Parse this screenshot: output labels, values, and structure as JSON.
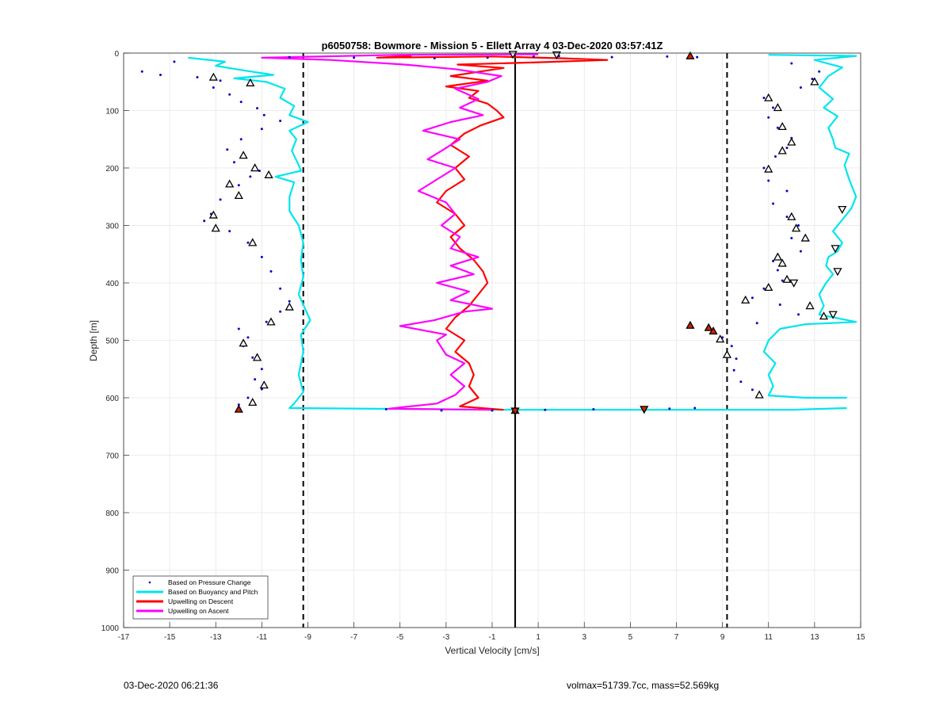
{
  "chart_data": {
    "type": "scatter",
    "title": "p6050758: Bowmore - Mission 5 - Ellett Array 4 03-Dec-2020 03:57:41Z",
    "xlabel": "Vertical Velocity [cm/s]",
    "ylabel": "Depth [m]",
    "xlim": [
      -17,
      15
    ],
    "ylim": [
      0,
      1000
    ],
    "y_reversed": true,
    "grid": true,
    "x_ticks": [
      -17,
      -15,
      -13,
      -11,
      -9,
      -7,
      -5,
      -3,
      -1,
      1,
      3,
      5,
      7,
      9,
      11,
      13,
      15
    ],
    "y_ticks": [
      0,
      100,
      200,
      300,
      400,
      500,
      600,
      700,
      800,
      900,
      1000
    ],
    "legend_position": "bottom-left",
    "reference_lines": [
      {
        "x": -9.2,
        "style": "dashed",
        "color": "#000000"
      },
      {
        "x": 0,
        "style": "solid",
        "color": "#000000"
      },
      {
        "x": 9.2,
        "style": "dashed",
        "color": "#000000"
      }
    ],
    "series": [
      {
        "name": "Based on Pressure Change",
        "kind": "points",
        "color": "#0000cc",
        "down": [
          [
            -14.8,
            15
          ],
          [
            -16.2,
            32
          ],
          [
            -15.4,
            38
          ],
          [
            -13.8,
            42
          ],
          [
            -12.8,
            48
          ],
          [
            -13.1,
            60
          ],
          [
            -12.4,
            72
          ],
          [
            -11.9,
            85
          ],
          [
            -11.2,
            96
          ],
          [
            -10.9,
            108
          ],
          [
            -10.2,
            118
          ],
          [
            -11.0,
            132
          ],
          [
            -11.9,
            150
          ],
          [
            -12.5,
            168
          ],
          [
            -11.8,
            178
          ],
          [
            -12.2,
            190
          ],
          [
            -11.1,
            205
          ],
          [
            -11.5,
            215
          ],
          [
            -12.0,
            230
          ],
          [
            -12.8,
            255
          ],
          [
            -13.2,
            280
          ],
          [
            -13.5,
            292
          ],
          [
            -12.4,
            310
          ],
          [
            -11.6,
            330
          ],
          [
            -11.0,
            355
          ],
          [
            -10.6,
            380
          ],
          [
            -10.2,
            410
          ],
          [
            -9.8,
            432
          ],
          [
            -10.2,
            450
          ],
          [
            -10.8,
            468
          ],
          [
            -12.0,
            480
          ],
          [
            -11.6,
            495
          ],
          [
            -11.8,
            510
          ],
          [
            -11.4,
            530
          ],
          [
            -11.0,
            550
          ],
          [
            -11.3,
            568
          ],
          [
            -11.0,
            585
          ],
          [
            -11.6,
            600
          ],
          [
            -12.0,
            612
          ]
        ],
        "up": [
          [
            10.6,
            598
          ],
          [
            10.3,
            586
          ],
          [
            9.8,
            572
          ],
          [
            9.5,
            552
          ],
          [
            9.6,
            532
          ],
          [
            9.4,
            510
          ],
          [
            9.0,
            495
          ],
          [
            8.6,
            480
          ],
          [
            10.5,
            470
          ],
          [
            12.3,
            455
          ],
          [
            11.5,
            438
          ],
          [
            10.3,
            426
          ],
          [
            10.8,
            410
          ],
          [
            11.6,
            396
          ],
          [
            11.4,
            378
          ],
          [
            11.2,
            362
          ],
          [
            12.4,
            345
          ],
          [
            12.0,
            322
          ],
          [
            12.3,
            300
          ],
          [
            11.8,
            285
          ],
          [
            11.2,
            262
          ],
          [
            11.8,
            240
          ],
          [
            11.0,
            222
          ],
          [
            10.8,
            200
          ],
          [
            11.3,
            180
          ],
          [
            11.8,
            165
          ],
          [
            12.0,
            148
          ],
          [
            11.4,
            130
          ],
          [
            11.0,
            112
          ],
          [
            11.2,
            95
          ],
          [
            10.8,
            78
          ],
          [
            12.4,
            60
          ],
          [
            12.9,
            45
          ],
          [
            13.2,
            32
          ],
          [
            12.0,
            18
          ]
        ],
        "spikes": [
          [
            -9.8,
            7
          ],
          [
            -7.0,
            8
          ],
          [
            -3.5,
            9
          ],
          [
            -1.2,
            8
          ],
          [
            0.8,
            6
          ],
          [
            1.9,
            5
          ],
          [
            4.2,
            7
          ],
          [
            6.6,
            6
          ],
          [
            7.9,
            7
          ],
          [
            -5.6,
            620
          ],
          [
            -3.2,
            622
          ],
          [
            -1.0,
            622
          ],
          [
            1.3,
            621
          ],
          [
            3.4,
            620
          ],
          [
            5.6,
            620
          ],
          [
            6.7,
            619
          ],
          [
            7.8,
            618
          ]
        ]
      },
      {
        "name": "Based on Buoyancy and Pitch",
        "kind": "line",
        "color": "#00e5ee",
        "down": [
          [
            -14.2,
            8
          ],
          [
            -12.6,
            15
          ],
          [
            -13.0,
            22
          ],
          [
            -11.8,
            30
          ],
          [
            -10.5,
            38
          ],
          [
            -12.2,
            44
          ],
          [
            -10.8,
            50
          ],
          [
            -10.0,
            62
          ],
          [
            -10.2,
            78
          ],
          [
            -9.6,
            92
          ],
          [
            -9.8,
            108
          ],
          [
            -9.0,
            120
          ],
          [
            -9.8,
            135
          ],
          [
            -9.5,
            150
          ],
          [
            -9.7,
            170
          ],
          [
            -9.4,
            195
          ],
          [
            -9.3,
            205
          ],
          [
            -10.4,
            215
          ],
          [
            -9.6,
            225
          ],
          [
            -9.8,
            250
          ],
          [
            -9.8,
            275
          ],
          [
            -9.4,
            300
          ],
          [
            -9.2,
            330
          ],
          [
            -9.3,
            360
          ],
          [
            -9.2,
            390
          ],
          [
            -9.4,
            420
          ],
          [
            -8.9,
            465
          ],
          [
            -9.3,
            490
          ],
          [
            -9.2,
            520
          ],
          [
            -9.4,
            560
          ],
          [
            -9.2,
            590
          ],
          [
            -9.6,
            610
          ],
          [
            -9.8,
            618
          ],
          [
            0,
            621
          ],
          [
            8,
            621
          ],
          [
            12,
            621
          ],
          [
            14.4,
            618
          ]
        ],
        "up": [
          [
            14.4,
            600
          ],
          [
            12.6,
            600
          ],
          [
            11.0,
            596
          ],
          [
            11.2,
            580
          ],
          [
            11.0,
            560
          ],
          [
            11.3,
            540
          ],
          [
            10.8,
            520
          ],
          [
            11.0,
            500
          ],
          [
            11.5,
            480
          ],
          [
            12.6,
            472
          ],
          [
            14.8,
            468
          ],
          [
            13.2,
            455
          ],
          [
            13.4,
            440
          ],
          [
            13.2,
            420
          ],
          [
            13.5,
            400
          ],
          [
            13.8,
            385
          ],
          [
            13.5,
            370
          ],
          [
            13.6,
            355
          ],
          [
            14.0,
            345
          ],
          [
            14.2,
            330
          ],
          [
            13.8,
            310
          ],
          [
            14.2,
            290
          ],
          [
            14.6,
            270
          ],
          [
            14.8,
            250
          ],
          [
            14.5,
            220
          ],
          [
            14.3,
            195
          ],
          [
            14.5,
            175
          ],
          [
            13.9,
            165
          ],
          [
            13.8,
            150
          ],
          [
            13.6,
            130
          ],
          [
            14.0,
            110
          ],
          [
            13.4,
            95
          ],
          [
            13.8,
            80
          ],
          [
            13.2,
            60
          ],
          [
            13.6,
            40
          ],
          [
            14.2,
            25
          ],
          [
            13.0,
            12
          ],
          [
            14.8,
            5
          ],
          [
            11.0,
            3
          ]
        ]
      },
      {
        "name": "Upwelling on Descent",
        "kind": "line",
        "color": "#ff0000",
        "points": [
          [
            -4.5,
            5
          ],
          [
            -6.0,
            8
          ],
          [
            -1.0,
            6
          ],
          [
            2.0,
            9
          ],
          [
            4.0,
            12
          ],
          [
            1.0,
            16
          ],
          [
            -2.5,
            20
          ],
          [
            -0.5,
            26
          ],
          [
            -1.5,
            32
          ],
          [
            -2.8,
            40
          ],
          [
            -1.2,
            48
          ],
          [
            -3.0,
            58
          ],
          [
            -1.6,
            66
          ],
          [
            -2.0,
            78
          ],
          [
            -1.2,
            88
          ],
          [
            -0.8,
            100
          ],
          [
            -0.5,
            112
          ],
          [
            -1.5,
            126
          ],
          [
            -2.2,
            140
          ],
          [
            -2.8,
            160
          ],
          [
            -2.0,
            180
          ],
          [
            -2.6,
            200
          ],
          [
            -2.2,
            220
          ],
          [
            -3.0,
            240
          ],
          [
            -3.4,
            260
          ],
          [
            -2.6,
            280
          ],
          [
            -2.2,
            300
          ],
          [
            -2.8,
            320
          ],
          [
            -2.4,
            340
          ],
          [
            -1.8,
            360
          ],
          [
            -1.4,
            380
          ],
          [
            -1.2,
            400
          ],
          [
            -1.6,
            420
          ],
          [
            -2.0,
            440
          ],
          [
            -2.6,
            460
          ],
          [
            -3.0,
            480
          ],
          [
            -2.2,
            500
          ],
          [
            -2.6,
            520
          ],
          [
            -2.0,
            540
          ],
          [
            -1.8,
            560
          ],
          [
            -2.0,
            580
          ],
          [
            -1.6,
            600
          ],
          [
            -2.4,
            615
          ],
          [
            -0.5,
            621
          ]
        ]
      },
      {
        "name": "Upwelling on Ascent",
        "kind": "line",
        "color": "#ff00ff",
        "points": [
          [
            -1.0,
            621
          ],
          [
            -5.5,
            619
          ],
          [
            -3.4,
            610
          ],
          [
            -2.6,
            595
          ],
          [
            -2.2,
            580
          ],
          [
            -2.8,
            560
          ],
          [
            -2.2,
            540
          ],
          [
            -3.0,
            525
          ],
          [
            -3.4,
            500
          ],
          [
            -3.0,
            490
          ],
          [
            -5.0,
            475
          ],
          [
            -3.5,
            465
          ],
          [
            -2.2,
            450
          ],
          [
            -1.0,
            445
          ],
          [
            -2.8,
            430
          ],
          [
            -2.0,
            415
          ],
          [
            -3.4,
            400
          ],
          [
            -1.8,
            385
          ],
          [
            -2.8,
            370
          ],
          [
            -1.6,
            355
          ],
          [
            -2.8,
            340
          ],
          [
            -2.4,
            320
          ],
          [
            -3.2,
            300
          ],
          [
            -2.6,
            280
          ],
          [
            -3.0,
            260
          ],
          [
            -4.2,
            240
          ],
          [
            -3.4,
            220
          ],
          [
            -2.6,
            200
          ],
          [
            -3.8,
            185
          ],
          [
            -3.2,
            170
          ],
          [
            -2.4,
            150
          ],
          [
            -4.0,
            135
          ],
          [
            -2.8,
            120
          ],
          [
            -1.4,
            108
          ],
          [
            -2.4,
            95
          ],
          [
            -1.6,
            80
          ],
          [
            -2.6,
            62
          ],
          [
            -1.2,
            50
          ],
          [
            -0.6,
            40
          ],
          [
            -2.6,
            28
          ],
          [
            -4.8,
            20
          ],
          [
            -8.0,
            12
          ],
          [
            -11.0,
            8
          ],
          [
            -5.0,
            3
          ],
          [
            1.0,
            2
          ]
        ]
      }
    ],
    "markers": {
      "open_up": [
        [
          -13.1,
          42
        ],
        [
          -11.5,
          52
        ],
        [
          -11.8,
          178
        ],
        [
          -11.3,
          200
        ],
        [
          -10.7,
          212
        ],
        [
          -12.4,
          228
        ],
        [
          -12.0,
          248
        ],
        [
          -13.1,
          282
        ],
        [
          -13.0,
          305
        ],
        [
          -11.4,
          330
        ],
        [
          -9.8,
          442
        ],
        [
          -10.6,
          468
        ],
        [
          -11.8,
          505
        ],
        [
          -11.2,
          530
        ],
        [
          -10.9,
          578
        ],
        [
          -11.4,
          608
        ],
        [
          13.0,
          50
        ],
        [
          11.0,
          78
        ],
        [
          11.4,
          95
        ],
        [
          11.6,
          128
        ],
        [
          12.0,
          155
        ],
        [
          11.6,
          170
        ],
        [
          11.0,
          202
        ],
        [
          12.0,
          285
        ],
        [
          12.2,
          305
        ],
        [
          12.6,
          322
        ],
        [
          11.4,
          355
        ],
        [
          11.6,
          366
        ],
        [
          11.8,
          394
        ],
        [
          11.0,
          408
        ],
        [
          10.0,
          430
        ],
        [
          12.8,
          440
        ],
        [
          13.4,
          458
        ],
        [
          8.9,
          498
        ],
        [
          9.2,
          525
        ],
        [
          10.6,
          595
        ]
      ],
      "open_down": [
        [
          14.2,
          272
        ],
        [
          13.9,
          340
        ],
        [
          14.0,
          380
        ],
        [
          13.8,
          455
        ],
        [
          12.1,
          400
        ],
        [
          -0.1,
          2
        ],
        [
          1.8,
          3
        ]
      ],
      "filled_up": [
        [
          -12.0,
          620
        ],
        [
          7.6,
          5
        ],
        [
          7.6,
          474
        ],
        [
          8.4,
          478
        ],
        [
          8.6,
          484
        ],
        [
          0,
          622
        ]
      ],
      "filled_down": [
        [
          5.6,
          620
        ],
        [
          0,
          623
        ]
      ]
    }
  },
  "footer": {
    "timestamp": "03-Dec-2020 06:21:36",
    "info": "volmax=51739.7cc, mass=52.569kg"
  }
}
